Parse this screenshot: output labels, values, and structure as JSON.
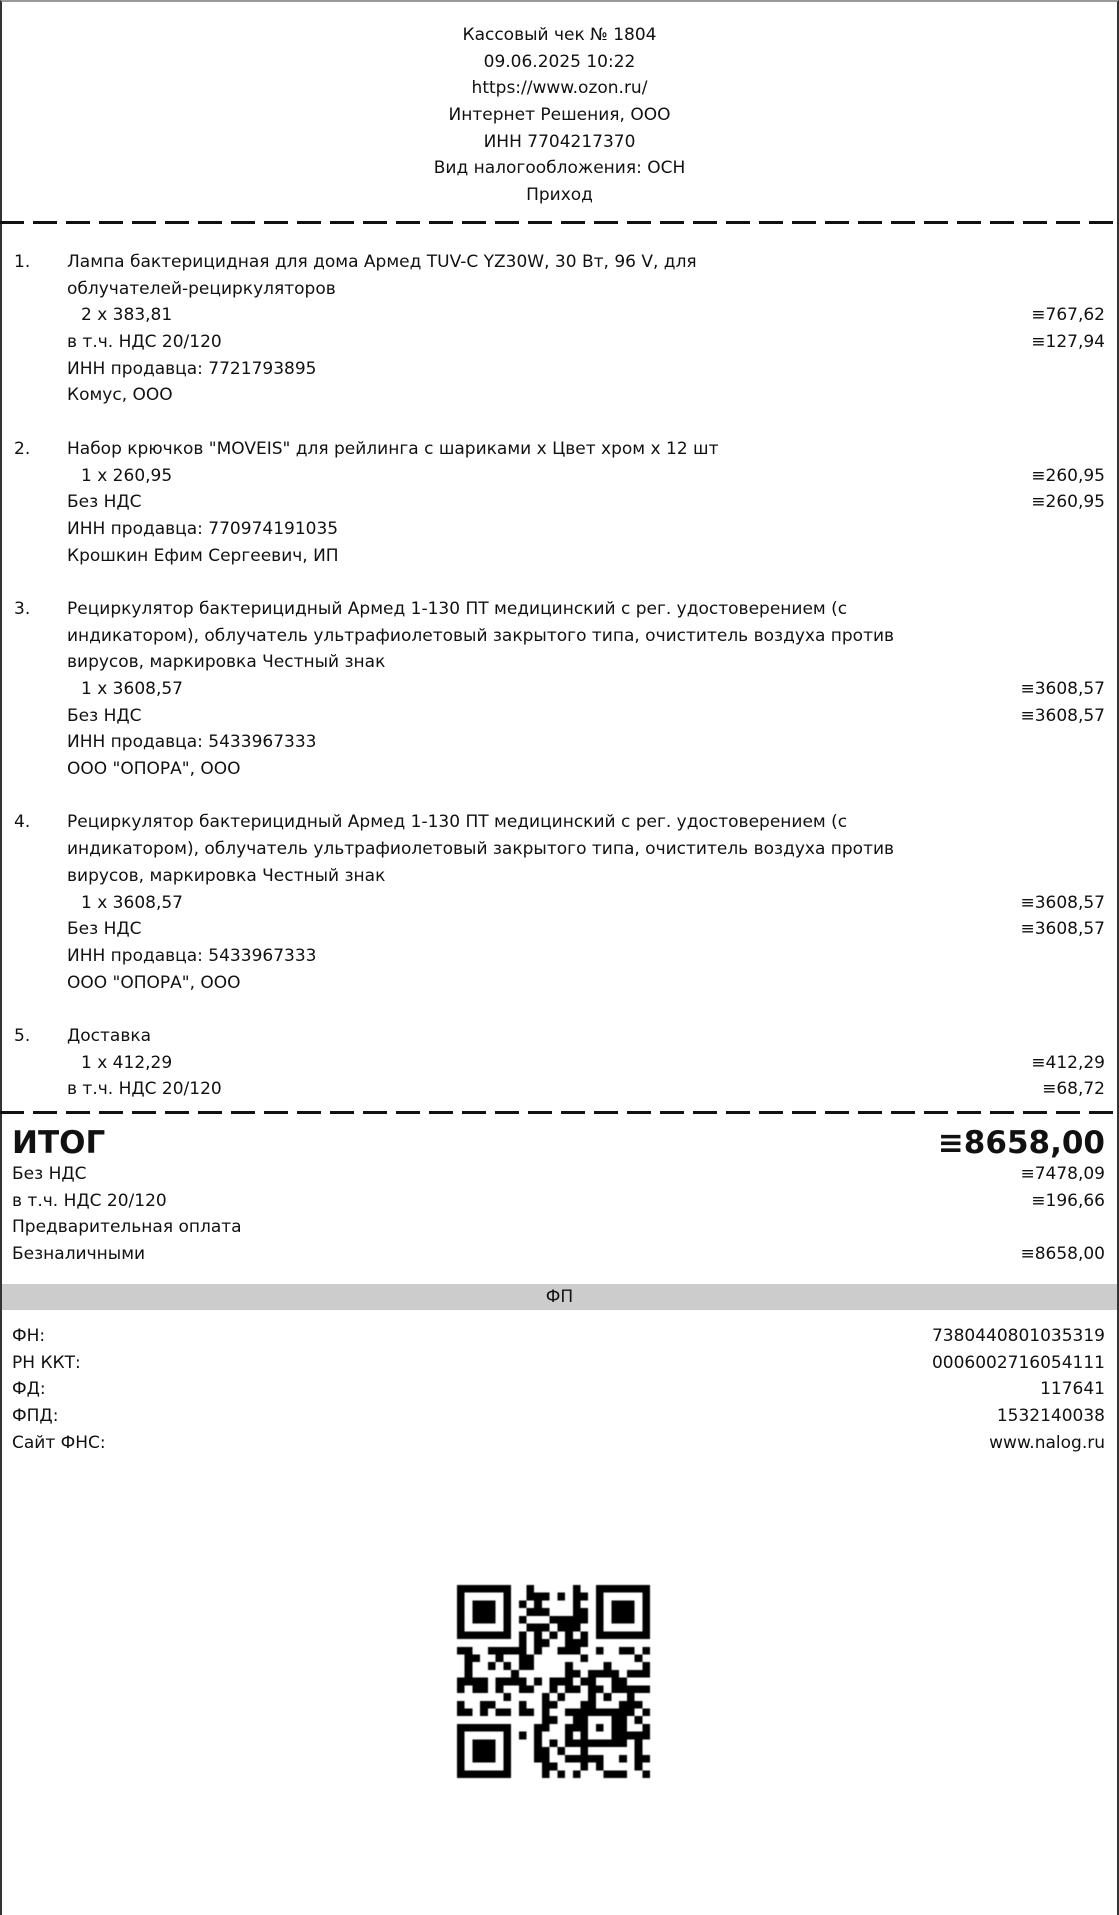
{
  "header": {
    "title": "Кассовый чек № 1804",
    "datetime": "09.06.2025 10:22",
    "site": "https://www.ozon.ru/",
    "company": "Интернет Решения, ООО",
    "inn": "ИНН 7704217370",
    "tax_system": "Вид налогообложения: ОСН",
    "operation": "Приход"
  },
  "items": [
    {
      "num": "1.",
      "name_lines": [
        "Лампа бактерицидная для дома Армед TUV-C YZ30W, 30 Вт, 96 V, для",
        "облучателей-рециркуляторов"
      ],
      "qty": "2 x 383,81",
      "sum": "≡767,62",
      "vat_label": "в т.ч. НДС 20/120",
      "vat_sum": "≡127,94",
      "seller_inn": "ИНН продавца: 7721793895",
      "seller": "Комус, ООО"
    },
    {
      "num": "2.",
      "name_lines": [
        "Набор крючков \"MOVEIS\" для рейлинга с шариками x Цвет хром x 12 шт"
      ],
      "qty": "1 x 260,95",
      "sum": "≡260,95",
      "vat_label": "Без НДС",
      "vat_sum": "≡260,95",
      "seller_inn": "ИНН продавца: 770974191035",
      "seller": "Крошкин Ефим Сергеевич, ИП"
    },
    {
      "num": "3.",
      "name_lines": [
        "Рециркулятор бактерицидный Армед 1-130 ПТ медицинский с рег. удостоверением (с",
        "индикатором), облучатель ультрафиолетовый закрытого типа, очиститель воздуха против",
        "вирусов, маркировка Честный знак"
      ],
      "qty": "1 x 3608,57",
      "sum": "≡3608,57",
      "vat_label": "Без НДС",
      "vat_sum": "≡3608,57",
      "seller_inn": "ИНН продавца: 5433967333",
      "seller": "ООО \"ОПОРА\", ООО"
    },
    {
      "num": "4.",
      "name_lines": [
        "Рециркулятор бактерицидный Армед 1-130 ПТ медицинский с рег. удостоверением (с",
        "индикатором), облучатель ультрафиолетовый закрытого типа, очиститель воздуха против",
        "вирусов, маркировка Честный знак"
      ],
      "qty": "1 x 3608,57",
      "sum": "≡3608,57",
      "vat_label": "Без НДС",
      "vat_sum": "≡3608,57",
      "seller_inn": "ИНН продавца: 5433967333",
      "seller": "ООО \"ОПОРА\", ООО"
    },
    {
      "num": "5.",
      "name_lines": [
        "Доставка"
      ],
      "qty": "1 x 412,29",
      "sum": "≡412,29",
      "vat_label": "в т.ч. НДС 20/120",
      "vat_sum": "≡68,72"
    }
  ],
  "totals": {
    "total_label": "ИТОГ",
    "total_value": "≡8658,00",
    "no_vat_label": "Без НДС",
    "no_vat_value": "≡7478,09",
    "vat_label": "в т.ч. НДС 20/120",
    "vat_value": "≡196,66",
    "prepay_label": "Предварительная оплата",
    "cashless_label": "Безналичными",
    "cashless_value": "≡8658,00"
  },
  "fp": {
    "band_label": "ФП",
    "rows": [
      {
        "label": "ФН:",
        "value": "7380440801035319"
      },
      {
        "label": "РН ККТ:",
        "value": "0006002716054111"
      },
      {
        "label": "ФД:",
        "value": "117641"
      },
      {
        "label": "ФПД:",
        "value": "1532140038"
      },
      {
        "label": "Сайт ФНС:",
        "value": "www.nalog.ru"
      }
    ]
  },
  "qr": {
    "icon": "qr-code-icon"
  }
}
